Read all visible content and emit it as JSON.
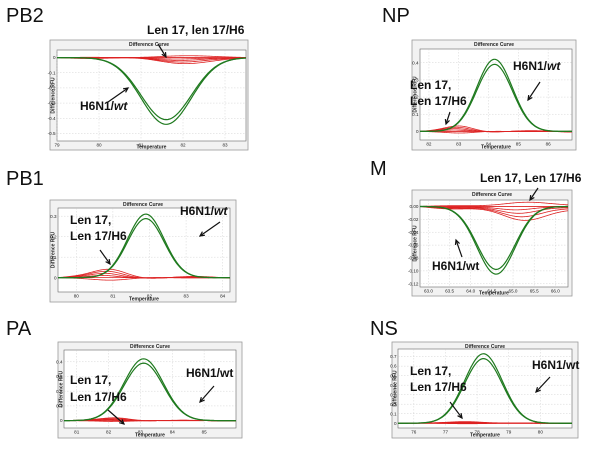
{
  "chart_data": [
    {
      "panel": "PB2",
      "type": "line",
      "title": "Difference Curve",
      "xlabel": "Temperature",
      "ylabel": "Difference RFU",
      "xlim": [
        79.0,
        83.5
      ],
      "ylim": [
        -0.55,
        0.05
      ],
      "xticks": [
        "79",
        "80",
        "81",
        "82",
        "83"
      ],
      "yticks": [
        "0",
        "-0.1",
        "-0.2",
        "-0.3",
        "-0.4",
        "-0.5"
      ],
      "peak": {
        "center": 81.6,
        "width": 0.6,
        "amplitude": -0.44
      },
      "minor": {
        "center": 81.7,
        "width": 0.45,
        "amplitude": -0.04
      },
      "annotations": [
        {
          "text": "Len 17, len 17/H6"
        },
        {
          "text": "H6N1/",
          "italic": "wt"
        }
      ]
    },
    {
      "panel": "NP",
      "type": "line",
      "title": "Difference Curve",
      "xlabel": "Temperature",
      "ylabel": "Difference RFU",
      "xlim": [
        81.7,
        86.8
      ],
      "ylim": [
        -0.05,
        0.48
      ],
      "xticks": [
        "82",
        "83",
        "84",
        "85",
        "86"
      ],
      "yticks": [
        "0",
        "0.1",
        "0.2",
        "0.3",
        "0.4"
      ],
      "peak": {
        "center": 84.2,
        "width": 0.6,
        "amplitude": 0.42
      },
      "minor": {
        "center": 82.8,
        "width": 0.35,
        "amplitude": 0.03
      },
      "annotations": [
        {
          "text": "Len 17,"
        },
        {
          "text": "Len 17/H6"
        },
        {
          "text": "H6N1/",
          "italic": "wt"
        }
      ]
    },
    {
      "panel": "PB1",
      "type": "line",
      "title": "Difference Curve",
      "xlabel": "Temperature",
      "ylabel": "Difference RFU",
      "xlim": [
        79.5,
        84.2
      ],
      "ylim": [
        -0.07,
        0.34
      ],
      "xticks": [
        "80",
        "81",
        "82",
        "83",
        "84"
      ],
      "yticks": [
        "0",
        "0.1",
        "0.2",
        "0.3"
      ],
      "peak": {
        "center": 81.9,
        "width": 0.5,
        "amplitude": 0.31,
        "tail": 1.0
      },
      "minor": {
        "center": 80.7,
        "width": 0.35,
        "amplitude": 0.04
      },
      "annotations": [
        {
          "text": "Len 17,"
        },
        {
          "text": "Len 17/H6"
        },
        {
          "text": "H6N1/",
          "italic": "wt"
        }
      ]
    },
    {
      "panel": "M",
      "type": "line",
      "title": "Difference Curve",
      "xlabel": "Temperature",
      "ylabel": "Difference RFU",
      "xlim": [
        62.8,
        66.3
      ],
      "ylim": [
        -0.125,
        0.01
      ],
      "xticks": [
        "63.0",
        "63.5",
        "64.0",
        "64.5",
        "65.0",
        "65.5",
        "66.0"
      ],
      "yticks": [
        "0.00",
        "-0.02",
        "-0.04",
        "-0.06",
        "-0.08",
        "-0.10",
        "-0.12"
      ],
      "peak": {
        "center": 64.6,
        "width": 0.45,
        "amplitude": -0.105
      },
      "minor": {
        "center": 65.0,
        "width": 0.4,
        "amplitude": -0.025
      },
      "annotations": [
        {
          "text": "Len 17, Len 17/H6"
        },
        {
          "text": "H6N1/wt"
        }
      ]
    },
    {
      "panel": "PA",
      "type": "line",
      "title": "Difference Curve",
      "xlabel": "Temperature",
      "ylabel": "Difference RFU",
      "xlim": [
        80.6,
        86.0
      ],
      "ylim": [
        -0.05,
        0.48
      ],
      "xticks": [
        "81",
        "82",
        "83",
        "84",
        "85"
      ],
      "yticks": [
        "0",
        "0.1",
        "0.2",
        "0.3",
        "0.4"
      ],
      "peak": {
        "center": 83.1,
        "width": 0.62,
        "amplitude": 0.42
      },
      "minor": {
        "center": 82.0,
        "width": 0.35,
        "amplitude": 0.02
      },
      "annotations": [
        {
          "text": "Len 17,"
        },
        {
          "text": "Len 17/H6"
        },
        {
          "text": "H6N1/wt"
        }
      ]
    },
    {
      "panel": "NS",
      "type": "line",
      "title": "Difference Curve",
      "xlabel": "Temperature",
      "ylabel": "Difference RFU",
      "xlim": [
        75.5,
        81.0
      ],
      "ylim": [
        -0.05,
        0.78
      ],
      "xticks": [
        "76",
        "77",
        "78",
        "79",
        "80"
      ],
      "yticks": [
        "0",
        "0.1",
        "0.2",
        "0.3",
        "0.4",
        "0.5",
        "0.6",
        "0.7"
      ],
      "peak": {
        "center": 78.2,
        "width": 0.6,
        "amplitude": 0.73
      },
      "minor": {
        "center": 77.4,
        "width": 0.4,
        "amplitude": 0.02
      },
      "annotations": [
        {
          "text": "Len 17,"
        },
        {
          "text": "Len 17/H6"
        },
        {
          "text": "H6N1/wt"
        }
      ]
    }
  ],
  "colors": {
    "wt": "#1f7a1f",
    "mutant": "#dd2222",
    "grid": "#c8c8c8"
  }
}
